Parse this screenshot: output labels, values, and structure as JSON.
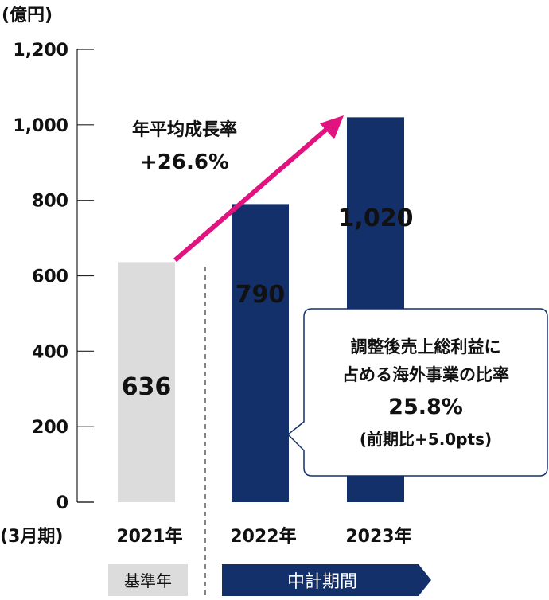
{
  "chart_data": {
    "type": "bar",
    "unit_label": "(億円)",
    "period_label": "(3月期)",
    "categories": [
      "2021年",
      "2022年",
      "2023年"
    ],
    "values": [
      636,
      790,
      1020
    ],
    "value_labels": [
      "636",
      "790",
      "1,020"
    ],
    "ylim": [
      0,
      1200
    ],
    "yticks": [
      0,
      200,
      400,
      600,
      800,
      1000,
      1200
    ],
    "ytick_labels": [
      "0",
      "200",
      "400",
      "600",
      "800",
      "1,000",
      "1,200"
    ],
    "bar_colors": [
      "#dcdcdc",
      "#14306a",
      "#14306a"
    ],
    "growth_annotation": {
      "line1": "年平均成長率",
      "line2": "+26.6%",
      "arrow_color": "#e0137f"
    },
    "callout": {
      "line1": "調整後売上総利益に",
      "line2": "占める海外事業の比率",
      "line3": "25.8%",
      "line4": "(前期比+5.0pts)"
    },
    "base_label": "基準年",
    "plan_label": "中計期間",
    "colors": {
      "base": "#dcdcdc",
      "plan": "#14306a",
      "accent": "#e0137f"
    }
  }
}
